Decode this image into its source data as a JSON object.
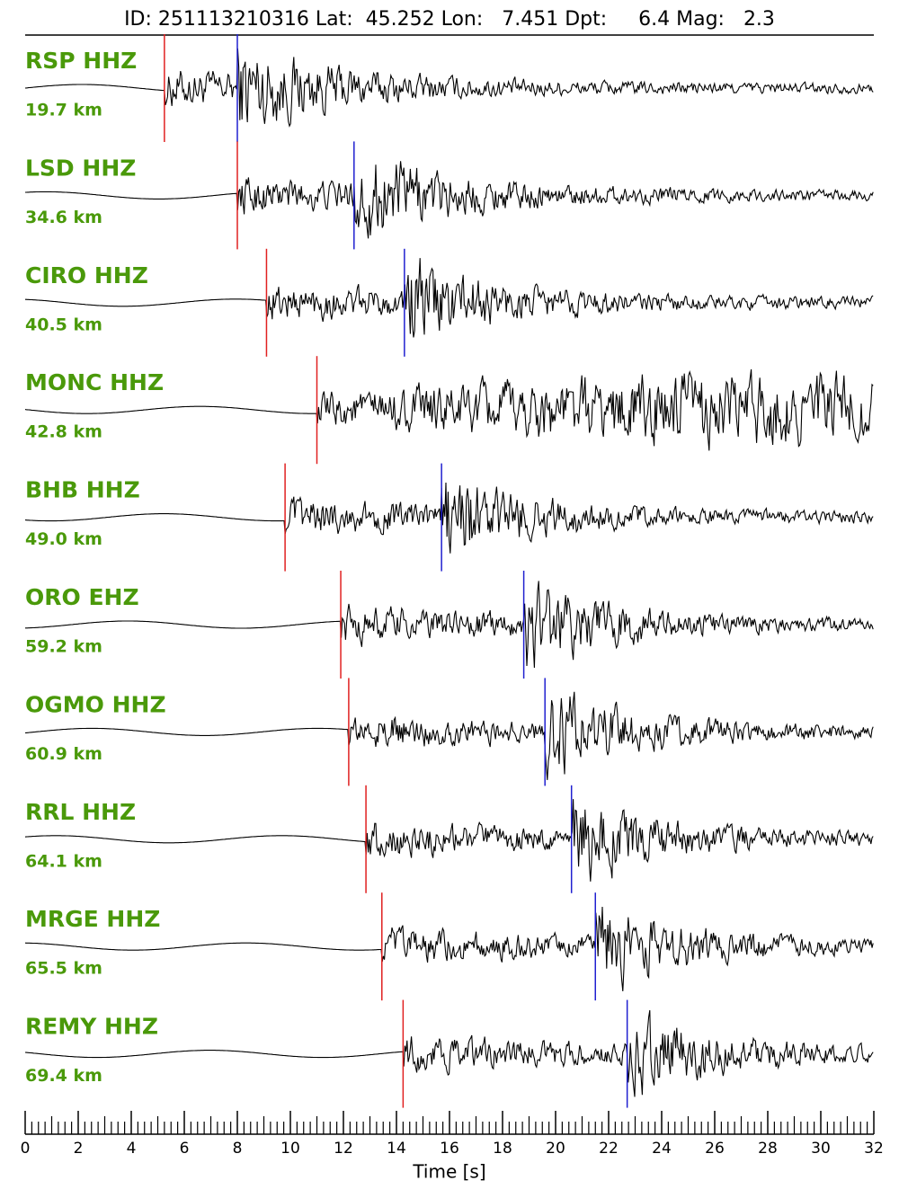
{
  "chart_data": {
    "type": "seismogram",
    "title": "ID: 251113210316 Lat:  45.252 Lon:   7.451 Dpt:     6.4 Mag:   2.3",
    "x_label": "Time [s]",
    "xlim": [
      0,
      32
    ],
    "xticks": [
      0,
      2,
      4,
      6,
      8,
      10,
      12,
      14,
      16,
      18,
      20,
      22,
      24,
      26,
      28,
      30,
      32
    ],
    "p_color": "#e02020",
    "s_color": "#2020d0",
    "label_color": "#4a990a",
    "traces": [
      {
        "name": "RSP HHZ",
        "distance": "19.7 km",
        "p": 5.25,
        "s": 8.0
      },
      {
        "name": "LSD HHZ",
        "distance": "34.6 km",
        "p": 8.0,
        "s": 12.4
      },
      {
        "name": "CIRO HHZ",
        "distance": "40.5 km",
        "p": 9.1,
        "s": 14.3
      },
      {
        "name": "MONC HHZ",
        "distance": "42.8 km",
        "p": 11.0,
        "s": null
      },
      {
        "name": "BHB HHZ",
        "distance": "49.0 km",
        "p": 9.8,
        "s": 15.7
      },
      {
        "name": "ORO EHZ",
        "distance": "59.2 km",
        "p": 11.9,
        "s": 18.8
      },
      {
        "name": "OGMO HHZ",
        "distance": "60.9 km",
        "p": 12.2,
        "s": 19.6
      },
      {
        "name": "RRL HHZ",
        "distance": "64.1 km",
        "p": 12.85,
        "s": 20.6
      },
      {
        "name": "MRGE HHZ",
        "distance": "65.5 km",
        "p": 13.45,
        "s": 21.5
      },
      {
        "name": "REMY HHZ",
        "distance": "69.4 km",
        "p": 14.25,
        "s": 22.7
      }
    ]
  }
}
